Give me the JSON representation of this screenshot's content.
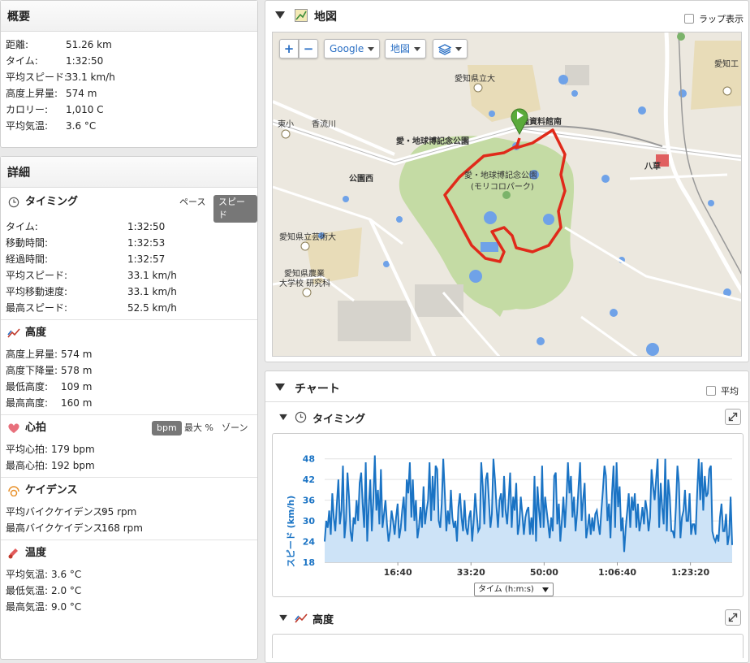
{
  "summary": {
    "title": "概要",
    "rows": [
      {
        "k": "距離:",
        "v": "51.26 km"
      },
      {
        "k": "タイム:",
        "v": "1:32:50"
      },
      {
        "k": "平均スピード:",
        "v": "33.1 km/h"
      },
      {
        "k": "高度上昇量:",
        "v": "574 m"
      },
      {
        "k": "カロリー:",
        "v": "1,010 C"
      },
      {
        "k": "平均気温:",
        "v": "3.6 °C"
      }
    ]
  },
  "details": {
    "title": "詳細",
    "timing": {
      "title": "タイミング",
      "pace_label": "ペース",
      "speed_label": "スピード",
      "rows": [
        {
          "k": "タイム:",
          "v": "1:32:50"
        },
        {
          "k": "移動時間:",
          "v": "1:32:53"
        },
        {
          "k": "経過時間:",
          "v": "1:32:57"
        },
        {
          "k": "平均スピード:",
          "v": "33.1 km/h"
        },
        {
          "k": "平均移動速度:",
          "v": "33.1 km/h"
        },
        {
          "k": "最高スピード:",
          "v": "52.5 km/h"
        }
      ]
    },
    "elevation": {
      "title": "高度",
      "rows": [
        {
          "k": "高度上昇量:",
          "v": "574 m"
        },
        {
          "k": "高度下降量:",
          "v": "578 m"
        },
        {
          "k": "最低高度:",
          "v": "109 m"
        },
        {
          "k": "最高高度:",
          "v": "160 m"
        }
      ]
    },
    "heart": {
      "title": "心拍",
      "bpm_label": "bpm",
      "max_label": "最大 %",
      "zone_label": "ゾーン",
      "rows": [
        {
          "k": "平均心拍:",
          "v": "179 bpm"
        },
        {
          "k": "最高心拍:",
          "v": "192 bpm"
        }
      ]
    },
    "cadence": {
      "title": "ケイデンス",
      "rows": [
        {
          "k": "平均バイクケイデンス:",
          "v": "95 rpm"
        },
        {
          "k": "最高バイクケイデンス:",
          "v": "168 rpm"
        }
      ]
    },
    "temperature": {
      "title": "温度",
      "rows": [
        {
          "k": "平均気温:",
          "v": "3.6 °C"
        },
        {
          "k": "最低気温:",
          "v": "2.0 °C"
        },
        {
          "k": "最高気温:",
          "v": "9.0 °C"
        }
      ]
    }
  },
  "map": {
    "title": "地図",
    "lap_label": "ラップ表示",
    "zoom_in": "+",
    "zoom_out": "−",
    "provider": "Google",
    "type": "地図",
    "labels": {
      "univ": "愛知県立大",
      "aichi_t": "愛知工",
      "higashi": "東小",
      "kaori": "香流川",
      "park_st": "愛・地球博記念公園",
      "shiryokan": "強資料館南",
      "koen_nishi": "公園西",
      "park1": "愛・地球博記念公園",
      "park2": "(モリコロパーク)",
      "yakusa": "八草",
      "geijutsu": "愛知県立芸術大",
      "nogyo1": "愛知県農業",
      "nogyo2": "大学校 研究科"
    }
  },
  "chart": {
    "title": "チャート",
    "avg_label": "平均",
    "timing_title": "タイミング",
    "elevation_title": "高度",
    "axis_select": "タイム (h:m:s)",
    "colors": {
      "line": "#1a73c4",
      "fill": "#cde3f7"
    }
  },
  "chart_data": {
    "type": "area",
    "title": "",
    "xlabel": "タイム (h:m:s)",
    "ylabel": "スピード (km/h)",
    "ylim": [
      18,
      51
    ],
    "y_ticks": [
      18,
      24,
      30,
      36,
      42,
      48
    ],
    "x_ticks": [
      "16:40",
      "33:20",
      "50:00",
      "1:06:40",
      "1:23:20"
    ],
    "x_tick_seconds": [
      1000,
      2000,
      3000,
      4000,
      5000
    ],
    "xlim_seconds": [
      0,
      5570
    ],
    "series": [
      {
        "values": [
          24,
          30,
          28,
          33,
          26,
          38,
          31,
          27,
          35,
          42,
          29,
          33,
          46,
          25,
          30,
          44,
          37,
          27,
          24,
          31,
          29,
          36,
          30,
          41,
          44,
          35,
          28,
          47,
          24,
          34,
          42,
          27,
          36,
          49,
          33,
          39,
          29,
          45,
          28,
          32,
          36,
          29,
          24,
          27,
          33,
          30,
          26,
          31,
          35,
          25,
          28,
          33,
          37,
          27,
          42,
          38,
          47,
          31,
          42,
          30,
          36,
          25,
          28,
          34,
          28,
          40,
          29,
          33,
          36,
          47,
          30,
          43,
          33,
          46,
          45,
          30,
          28,
          35,
          48,
          38,
          27,
          33,
          29,
          39,
          31,
          28,
          30,
          24,
          34,
          38,
          31,
          27,
          36,
          28,
          26,
          31,
          33,
          24,
          30,
          38,
          32,
          27,
          28,
          47,
          40,
          29,
          42,
          44,
          36,
          28,
          32,
          48,
          42,
          34,
          28,
          36,
          38,
          31,
          43,
          33,
          29,
          36,
          44,
          28,
          37,
          33,
          41,
          26,
          29,
          37,
          32,
          26,
          31,
          33,
          34,
          26,
          31,
          26,
          43,
          24,
          40,
          33,
          28,
          46,
          28,
          37,
          33,
          29,
          25,
          31,
          27,
          43,
          44,
          29,
          35,
          24,
          30,
          37,
          28,
          36,
          47,
          38,
          43,
          31,
          37,
          27,
          32,
          40,
          47,
          30,
          36,
          41,
          25,
          28,
          32,
          26,
          31,
          27,
          32,
          33,
          29,
          26,
          33,
          39,
          46,
          43,
          30,
          35,
          25,
          38,
          46,
          28,
          47,
          34,
          40,
          27,
          31,
          21,
          28,
          33,
          38,
          28,
          37,
          33,
          38,
          28,
          35,
          27,
          30,
          34,
          29,
          36,
          33,
          27,
          31,
          45,
          40,
          36,
          42,
          48,
          28,
          41,
          34,
          29,
          48,
          27,
          42,
          37,
          27,
          27,
          25,
          34,
          46,
          41,
          25,
          31,
          33,
          39,
          30,
          30,
          38,
          26,
          29,
          29,
          26,
          38,
          48,
          36,
          47,
          33,
          43,
          37,
          38,
          45,
          46,
          27,
          25,
          24,
          26,
          24,
          31,
          35,
          27,
          27,
          32,
          23,
          26,
          37,
          23
        ]
      }
    ]
  }
}
